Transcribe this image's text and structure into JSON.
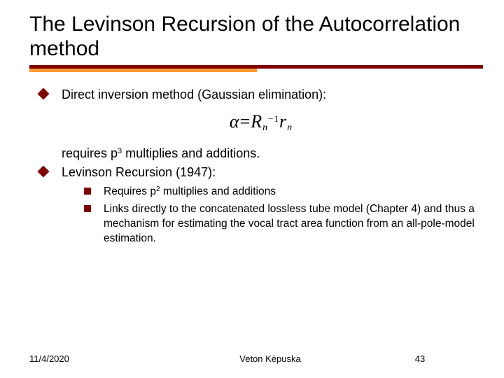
{
  "title": "The Levinson Recursion of the Autocorrelation method",
  "colors": {
    "rule_top": "#800000",
    "rule_bot": "#ff9933",
    "bullet": "#800000",
    "text": "#000000",
    "background": "#ffffff"
  },
  "typography": {
    "title_fontsize": 30,
    "body_fontsize": 18,
    "sub_fontsize": 15.5,
    "footer_fontsize": 13,
    "title_font": "Verdana",
    "eq_font": "Times New Roman"
  },
  "bullets": [
    {
      "text": "Direct inversion method (Gaussian elimination):"
    }
  ],
  "equation": {
    "lhs": "α",
    "eq": "=",
    "rhs_R": "R",
    "rhs_R_sub": "n",
    "rhs_R_sup": "−1",
    "rhs_r": "r",
    "rhs_r_sub": "n"
  },
  "continuation_pre": "requires p",
  "continuation_sup": "3",
  "continuation_post": " multiplies and additions.",
  "bullet2": "Levinson Recursion (1947):",
  "sub_bullets": [
    {
      "pre": "Requires p",
      "sup": "2",
      "post": " multiplies and additions"
    },
    {
      "pre": "Links directly to the concatenated lossless tube model (Chapter 4) and thus a mechanism for estimating the vocal tract area function from an all-pole-model estimation.",
      "sup": "",
      "post": ""
    }
  ],
  "footer": {
    "date": "11/4/2020",
    "author": "Veton Këpuska",
    "page": "43"
  }
}
